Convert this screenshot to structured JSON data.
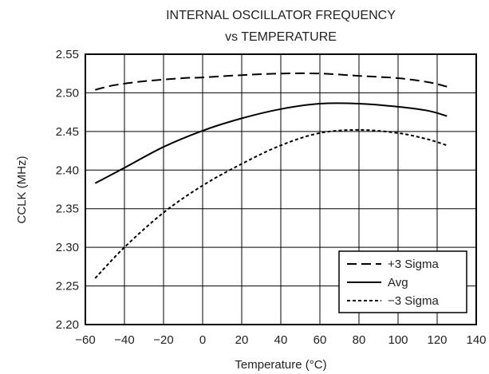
{
  "chart_data": {
    "type": "line",
    "title_line1": "INTERNAL OSCILLATOR FREQUENCY",
    "title_line2": "vs TEMPERATURE",
    "xlabel": "Temperature (°C)",
    "ylabel": "CCLK (MHz)",
    "xlim": [
      -60,
      140
    ],
    "ylim": [
      2.2,
      2.55
    ],
    "x_ticks": [
      -60,
      -40,
      -20,
      0,
      20,
      40,
      60,
      80,
      100,
      120,
      140
    ],
    "x_tick_labels": [
      "−60",
      "−40",
      "−20",
      "0",
      "20",
      "40",
      "60",
      "80",
      "100",
      "120",
      "140"
    ],
    "y_ticks": [
      2.2,
      2.25,
      2.3,
      2.35,
      2.4,
      2.45,
      2.5,
      2.55
    ],
    "y_tick_labels": [
      "2.20",
      "2.25",
      "2.30",
      "2.35",
      "2.40",
      "2.45",
      "2.50",
      "2.55"
    ],
    "grid": true,
    "legend_position": "bottom-right",
    "series": [
      {
        "name": "+3 Sigma",
        "dash": "dashed",
        "x": [
          -55,
          -45,
          -30,
          -10,
          0,
          20,
          40,
          60,
          80,
          100,
          115,
          125
        ],
        "y": [
          2.504,
          2.51,
          2.515,
          2.519,
          2.52,
          2.523,
          2.525,
          2.525,
          2.522,
          2.519,
          2.514,
          2.508
        ]
      },
      {
        "name": "Avg",
        "dash": "solid",
        "x": [
          -55,
          -40,
          -20,
          0,
          20,
          40,
          60,
          80,
          100,
          115,
          125
        ],
        "y": [
          2.383,
          2.403,
          2.43,
          2.451,
          2.467,
          2.479,
          2.486,
          2.486,
          2.482,
          2.477,
          2.47
        ]
      },
      {
        "name": "−3 Sigma",
        "dash": "dotted",
        "x": [
          -55,
          -40,
          -20,
          0,
          20,
          40,
          60,
          80,
          100,
          115,
          125
        ],
        "y": [
          2.26,
          2.3,
          2.345,
          2.38,
          2.408,
          2.432,
          2.448,
          2.452,
          2.448,
          2.44,
          2.432
        ]
      }
    ]
  }
}
